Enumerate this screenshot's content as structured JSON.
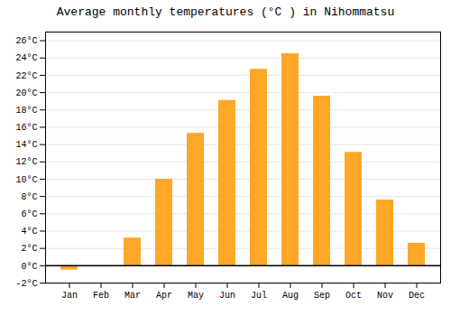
{
  "chart_data": {
    "type": "bar",
    "title": "Average monthly temperatures (°C ) in Nihommatsu",
    "categories": [
      "Jan",
      "Feb",
      "Mar",
      "Apr",
      "May",
      "Jun",
      "Jul",
      "Aug",
      "Sep",
      "Oct",
      "Nov",
      "Dec"
    ],
    "values": [
      -0.5,
      0.0,
      3.2,
      10.0,
      15.3,
      19.1,
      22.7,
      24.5,
      19.6,
      13.1,
      7.6,
      2.6
    ],
    "color": "#FFA726",
    "ylim": [
      -2,
      27
    ],
    "yticks": [
      {
        "value": -2,
        "label": "-2°C"
      },
      {
        "value": 0,
        "label": "0°C"
      },
      {
        "value": 2,
        "label": "2°C"
      },
      {
        "value": 4,
        "label": "4°C"
      },
      {
        "value": 6,
        "label": "6°C"
      },
      {
        "value": 8,
        "label": "8°C"
      },
      {
        "value": 10,
        "label": "10°C"
      },
      {
        "value": 12,
        "label": "12°C"
      },
      {
        "value": 14,
        "label": "14°C"
      },
      {
        "value": 16,
        "label": "16°C"
      },
      {
        "value": 18,
        "label": "18°C"
      },
      {
        "value": 20,
        "label": "20°C"
      },
      {
        "value": 22,
        "label": "22°C"
      },
      {
        "value": 24,
        "label": "24°C"
      },
      {
        "value": 26,
        "label": "26°C"
      }
    ],
    "grid": true
  }
}
